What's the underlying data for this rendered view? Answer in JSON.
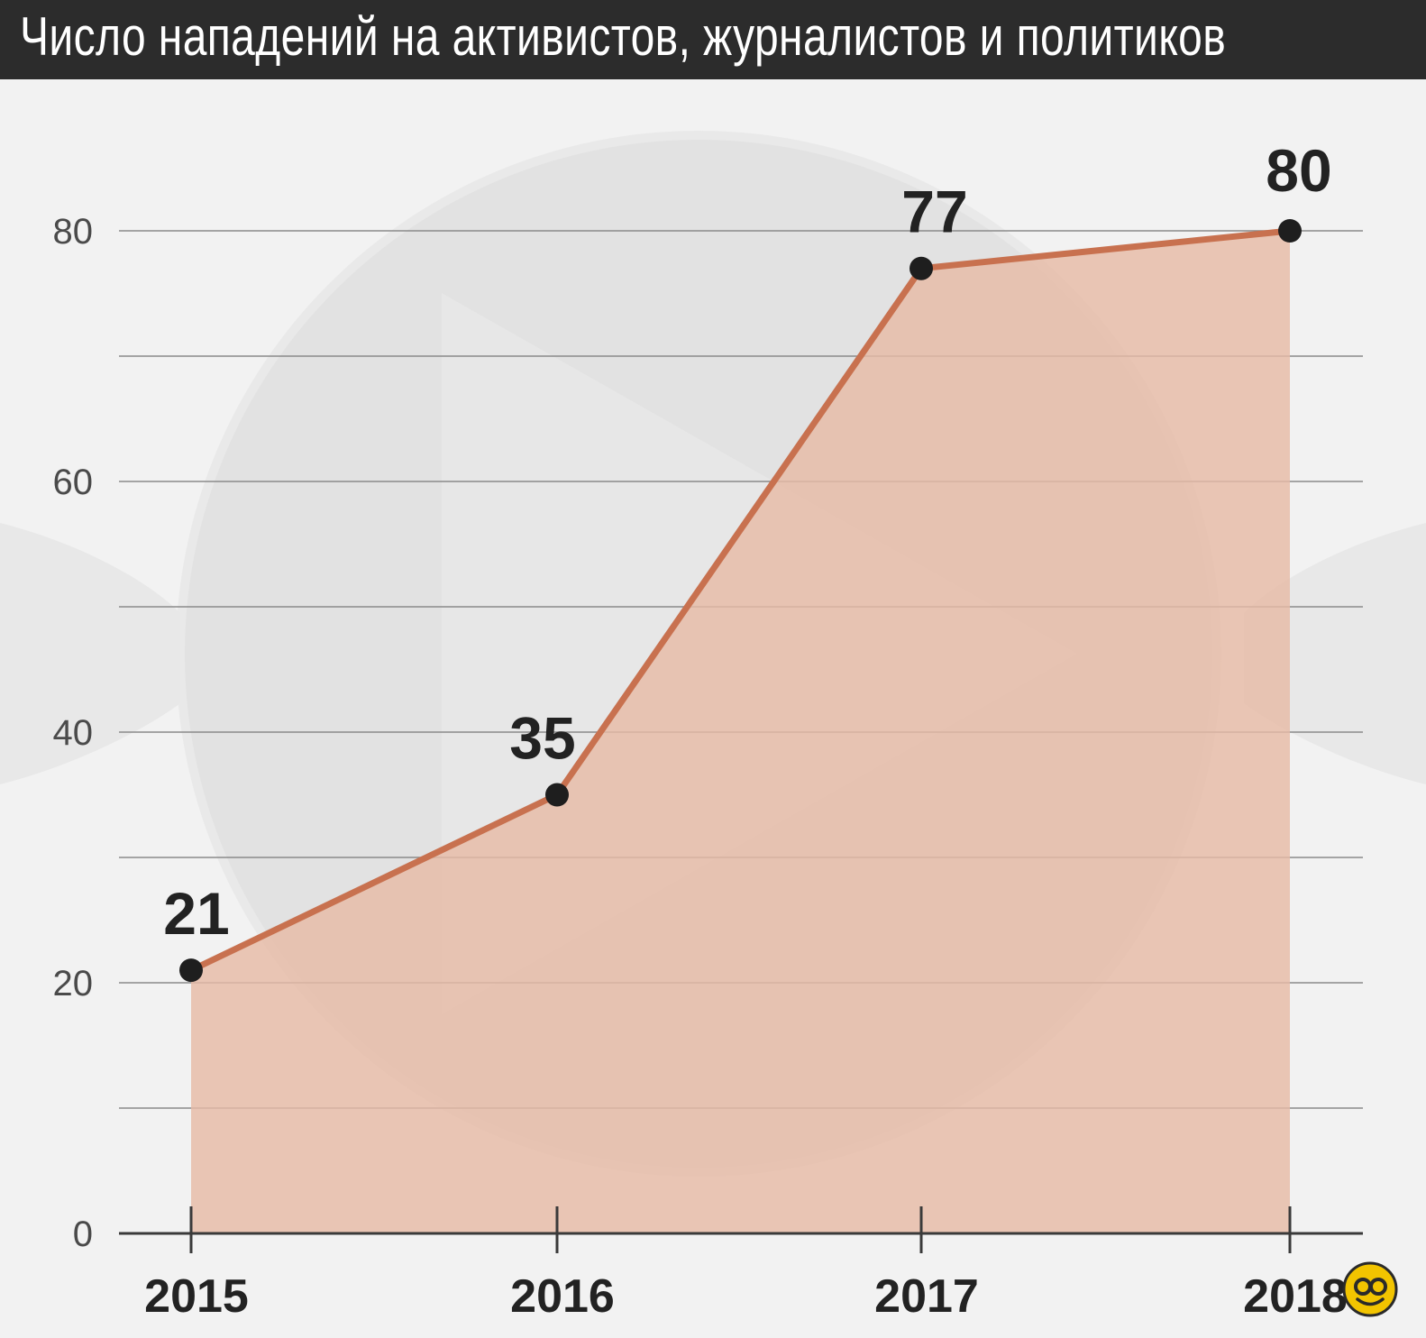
{
  "chart_data": {
    "type": "area",
    "title": "Число нападений на активистов, журналистов и политиков",
    "x": [
      "2015",
      "2016",
      "2017",
      "2018"
    ],
    "values": [
      21,
      35,
      77,
      80
    ],
    "data_labels": [
      "21",
      "35",
      "77",
      "80"
    ],
    "ylim": [
      0,
      80
    ],
    "yticks": [
      "0",
      "20",
      "40",
      "60",
      "80"
    ],
    "grid": true,
    "colors": {
      "area_fill": "#e7bba6",
      "line": "#c8714f",
      "marker": "#1e1e1e",
      "title_bar": "#2c2c2c"
    }
  },
  "logo": {
    "icon": "smiley-badge-icon"
  }
}
